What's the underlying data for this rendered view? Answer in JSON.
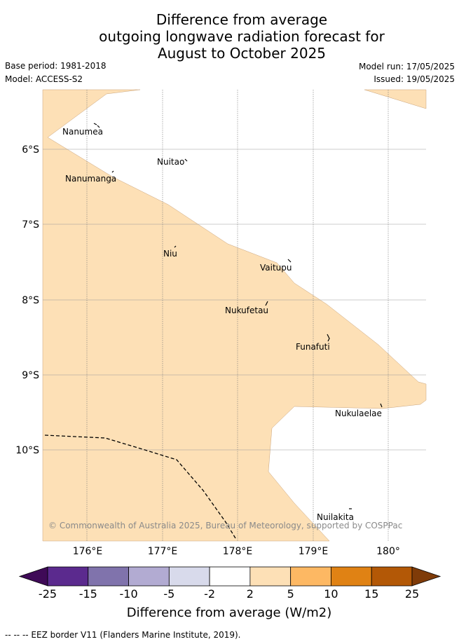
{
  "title": {
    "line1": "Difference from average",
    "line2": "outgoing longwave radiation forecast for",
    "line3": "August to October 2025"
  },
  "meta": {
    "base_period": "Base period: 1981-2018",
    "model": "Model: ACCESS-S2",
    "model_run": "Model run: 17/05/2025",
    "issued": "Issued: 19/05/2025"
  },
  "map": {
    "extent": {
      "lon_min": 175.5,
      "lon_max": 180.5,
      "lat_top": -5.3,
      "lat_bottom": -11.3
    },
    "lat_ticks": [
      "6°S",
      "7°S",
      "8°S",
      "9°S",
      "10°S"
    ],
    "lon_ticks": [
      "176°E",
      "177°E",
      "178°E",
      "179°E",
      "180°"
    ],
    "places": [
      {
        "name": "Nanumea"
      },
      {
        "name": "Nuitao"
      },
      {
        "name": "Nanumanga"
      },
      {
        "name": "Niu"
      },
      {
        "name": "Vaitupu"
      },
      {
        "name": "Nukufetau"
      },
      {
        "name": "Funafuti"
      },
      {
        "name": "Nukulaelae"
      },
      {
        "name": "Nuilakita"
      }
    ],
    "copyright": "© Commonwealth of Australia 2025, Bureau of Meteorology, supported by COSPPac",
    "fill_color": "#fde0b6",
    "fill_category": "2 to 5"
  },
  "colorbar": {
    "ticks": [
      "-25",
      "-15",
      "-10",
      "-5",
      "-2",
      "2",
      "5",
      "10",
      "15",
      "25"
    ],
    "colors": [
      "#3f0a57",
      "#5b2a8e",
      "#8073ac",
      "#b2abd2",
      "#d8daeb",
      "#ffffff",
      "#fde0b6",
      "#fdb863",
      "#e08214",
      "#b35806",
      "#7f3b08"
    ],
    "label": "Difference from average (W/m2)"
  },
  "footnote": "--  --  -- EEZ border V11 (Flanders Marine Institute, 2019)."
}
